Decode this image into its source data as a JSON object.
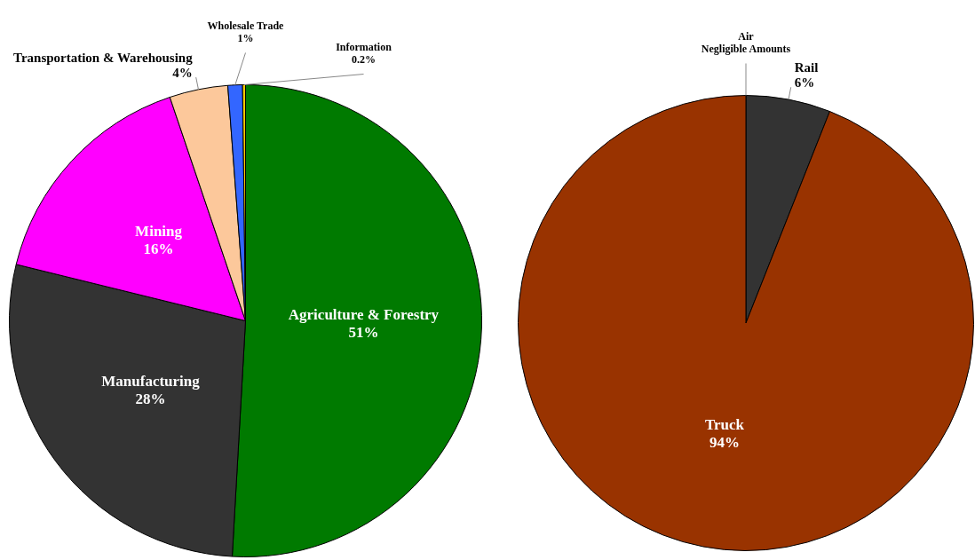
{
  "chart_data": [
    {
      "type": "pie",
      "categories": [
        "Agriculture & Forestry",
        "Manufacturing",
        "Mining",
        "Transportation & Warehousing",
        "Wholesale Trade",
        "Information"
      ],
      "values": [
        51,
        28,
        16,
        4,
        1,
        0.2
      ],
      "colors": [
        "#007a00",
        "#333333",
        "#ff00ff",
        "#fcc89b",
        "#3366ff",
        "#ffcc00"
      ],
      "value_labels": [
        "51%",
        "28%",
        "16%",
        "4%",
        "1%",
        "0.2%"
      ],
      "legend": false
    },
    {
      "type": "pie",
      "categories": [
        "Rail",
        "Truck",
        "Air"
      ],
      "values": [
        6,
        94,
        0
      ],
      "colors": [
        "#333333",
        "#993300",
        "#cccccc"
      ],
      "value_labels": [
        "6%",
        "94%",
        "Negligible Amounts"
      ],
      "legend": false
    }
  ]
}
